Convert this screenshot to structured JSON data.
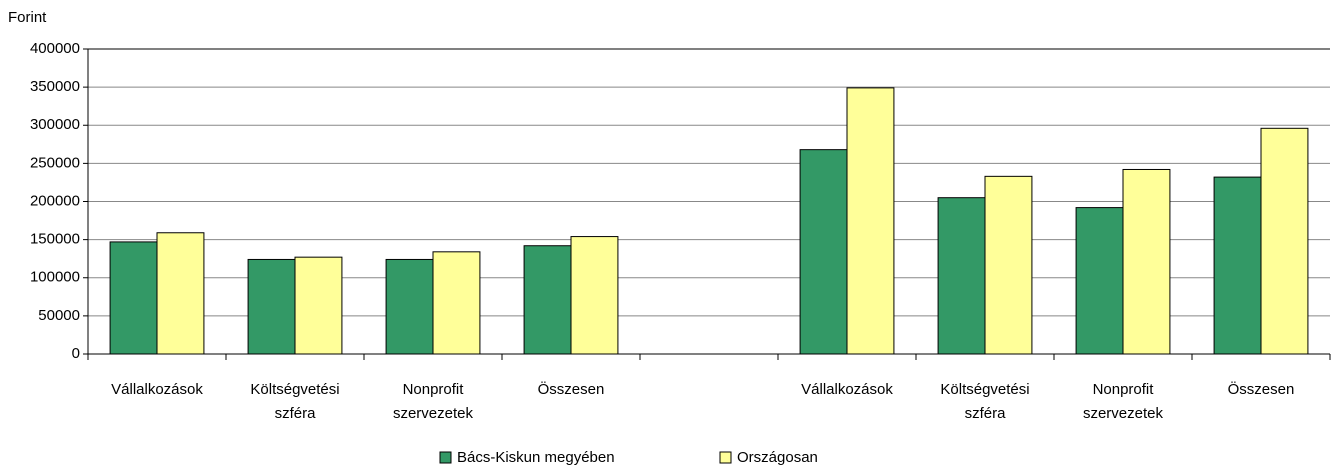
{
  "chart_data": {
    "type": "bar",
    "y_label": "Forint",
    "categories": [
      "Vállalkozások",
      "Költségvetési szféra",
      "Nonprofit szervezetek",
      "Összesen",
      null,
      "Vállalkozások",
      "Költségvetési szféra",
      "Nonprofit szervezetek",
      "Összesen"
    ],
    "series": [
      {
        "name": "Bács-Kiskun megyében",
        "color": "#339966",
        "values": [
          147000,
          124000,
          124000,
          142000,
          null,
          268000,
          205000,
          192000,
          232000
        ]
      },
      {
        "name": "Országosan",
        "color": "#ffff99",
        "values": [
          159000,
          127000,
          134000,
          154000,
          null,
          349000,
          233000,
          242000,
          296000
        ]
      }
    ],
    "ylim": [
      0,
      400000
    ],
    "yticks": [
      0,
      50000,
      100000,
      150000,
      200000,
      250000,
      300000,
      350000,
      400000
    ],
    "grid": true,
    "legend": "bottom"
  }
}
